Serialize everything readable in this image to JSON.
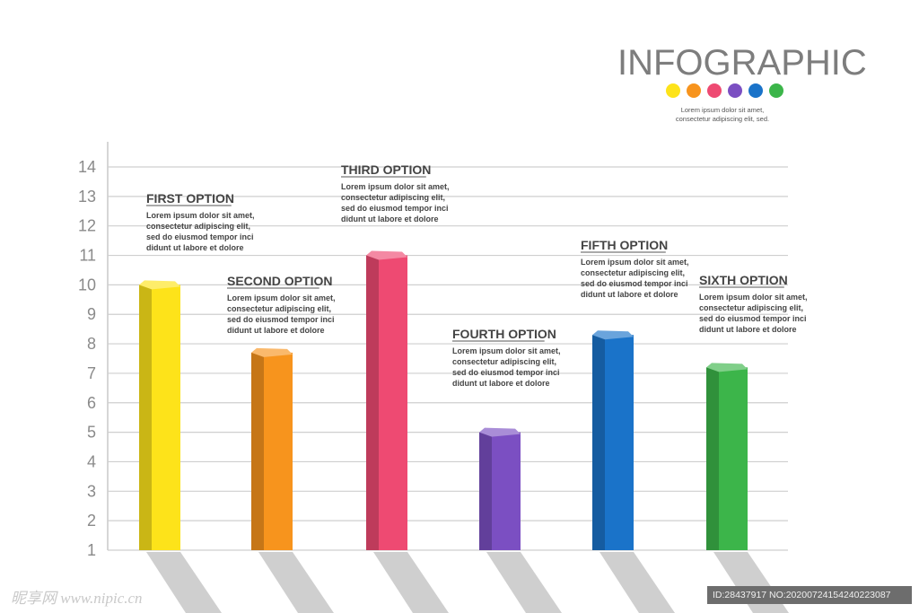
{
  "header": {
    "title": "INFOGRAPHIC",
    "subtitle_line1": "Lorem ipsum dolor sit amet,",
    "subtitle_line2": "consectetur adipiscing elit, sed.",
    "dot_colors": [
      "#fde31a",
      "#f7941d",
      "#ee4a72",
      "#7b4fc2",
      "#1a73c9",
      "#3cb54a"
    ]
  },
  "watermark": {
    "left": "昵享网 www.nipic.cn",
    "right": "ID:28437917 NO:20200724154240223087"
  },
  "chart_data": {
    "type": "bar",
    "categories": [
      "FIRST OPTION",
      "SECOND OPTION",
      "THIRD OPTION",
      "FOURTH OPTION",
      "FIFTH OPTION",
      "SIXTH OPTION"
    ],
    "values": [
      10,
      7.7,
      11,
      5,
      8.3,
      7.2
    ],
    "y_ticks": [
      "1",
      "2",
      "3",
      "4",
      "5",
      "6",
      "7",
      "8",
      "9",
      "10",
      "11",
      "12",
      "13",
      "14"
    ],
    "ylim": [
      1,
      14
    ],
    "grid": true,
    "colors": [
      "#fde31a",
      "#f7941d",
      "#ee4a72",
      "#7b4fc2",
      "#1a73c9",
      "#3cb54a"
    ],
    "descriptions": [
      [
        "Lorem ipsum dolor sit amet,",
        "consectetur adipiscing elit,",
        "sed do eiusmod tempor inci",
        "didunt ut labore et dolore"
      ],
      [
        "Lorem ipsum dolor sit amet,",
        "consectetur adipiscing elit,",
        "sed do eiusmod tempor inci",
        "didunt ut labore et dolore"
      ],
      [
        "Lorem ipsum dolor sit amet,",
        "consectetur adipiscing elit,",
        "sed do eiusmod tempor inci",
        "didunt ut labore et dolore"
      ],
      [
        "Lorem ipsum dolor sit amet,",
        "consectetur adipiscing elit,",
        "sed do eiusmod tempor inci",
        "didunt ut labore et dolore"
      ],
      [
        "Lorem ipsum dolor sit amet,",
        "consectetur adipiscing elit,",
        "sed do eiusmod tempor inci",
        "didunt ut labore et dolore"
      ],
      [
        "Lorem ipsum dolor sit amet,",
        "consectetur adipiscing elit,",
        "sed do eiusmod tempor inci",
        "didunt ut labore et dolore"
      ]
    ]
  }
}
